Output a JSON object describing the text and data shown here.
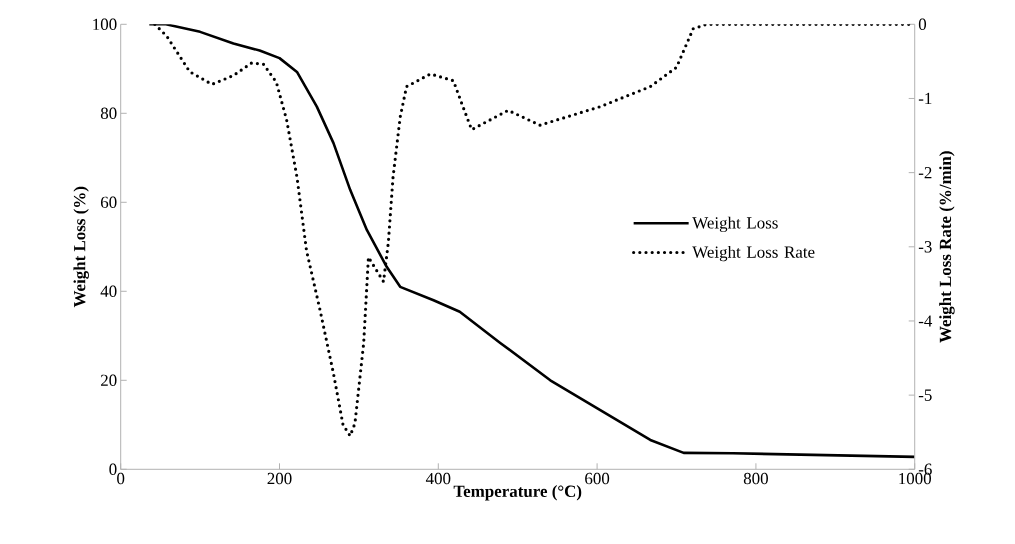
{
  "chart_data": {
    "type": "line",
    "xlabel": "Temperature (°C)",
    "ylabel": "Weight Loss (%)",
    "y2label": "Weight Loss Rate (%/min)",
    "xlim": [
      0,
      1000
    ],
    "xticks": [
      0,
      200,
      400,
      600,
      800,
      1000
    ],
    "ylim": [
      0,
      100
    ],
    "yticks": [
      0,
      20,
      40,
      60,
      80,
      100
    ],
    "y2lim": [
      -6,
      0
    ],
    "y2ticks": [
      -6,
      -5,
      -4,
      -3,
      -2,
      -1,
      0
    ],
    "legend": "right",
    "grid": false,
    "marker": "none",
    "series": [
      {
        "name": "Weight Loss",
        "color": "#000000",
        "line_style": "solid",
        "axis": "y",
        "x": [
          36,
          57,
          100,
          142,
          175,
          200,
          222,
          247,
          268,
          289,
          310,
          335,
          352,
          394,
          427,
          478,
          541,
          604,
          667,
          709,
          771,
          1000
        ],
        "values": [
          100,
          100,
          98.3,
          95.7,
          94.1,
          92.4,
          89.3,
          81.5,
          73.3,
          62.8,
          53.8,
          45.5,
          41,
          38,
          35.4,
          28.4,
          20,
          13.3,
          6.6,
          3.7,
          3.6,
          2.8
        ]
      },
      {
        "name": "Weight Loss Rate",
        "color": "#000000",
        "line_style": "dotted",
        "axis": "y2",
        "x": [
          43,
          58,
          87,
          115,
          142,
          165,
          180,
          196,
          209,
          222,
          234,
          251,
          268,
          280,
          289,
          295,
          306,
          312,
          331,
          337,
          343,
          352,
          360,
          390,
          419,
          431,
          442,
          488,
          528,
          604,
          667,
          700,
          721,
          738,
          1000
        ],
        "values": [
          0,
          -0.16,
          -0.64,
          -0.81,
          -0.69,
          -0.52,
          -0.54,
          -0.78,
          -1.29,
          -2.06,
          -3.05,
          -3.85,
          -4.71,
          -5.4,
          -5.55,
          -5.38,
          -4.3,
          -3.14,
          -3.47,
          -2.95,
          -2.06,
          -1.25,
          -0.84,
          -0.67,
          -0.76,
          -1.11,
          -1.42,
          -1.16,
          -1.36,
          -1.11,
          -0.84,
          -0.58,
          -0.06,
          0,
          0
        ]
      }
    ]
  }
}
